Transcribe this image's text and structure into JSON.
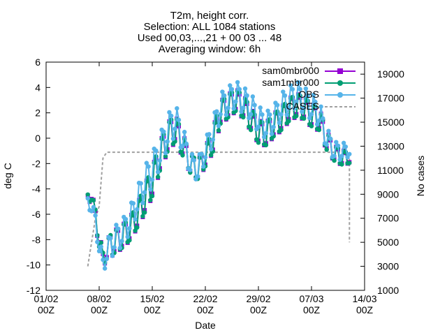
{
  "chart_data": {
    "type": "line",
    "title_lines": [
      "T2m, height corr.",
      "Selection: ALL   1084 stations",
      "Used 00,03,...,21 + 00 03 ... 48",
      "Averaging window:  6h"
    ],
    "xlabel": "Date",
    "ylabel": "deg C",
    "y2label": "No cases",
    "x_range": [
      "01/02 00Z",
      "14/03 00Z"
    ],
    "x_ticks": [
      {
        "line1": "01/02",
        "line2": "00Z"
      },
      {
        "line1": "08/02",
        "line2": "00Z"
      },
      {
        "line1": "15/02",
        "line2": "00Z"
      },
      {
        "line1": "22/02",
        "line2": "00Z"
      },
      {
        "line1": "29/02",
        "line2": "00Z"
      },
      {
        "line1": "07/03",
        "line2": "00Z"
      },
      {
        "line1": "14/03",
        "line2": "00Z"
      }
    ],
    "ylim": [
      -12,
      6
    ],
    "y_ticks": [
      "-12",
      "-10",
      "-8",
      "-6",
      "-4",
      "-2",
      "0",
      "2",
      "4",
      "6"
    ],
    "y2lim": [
      1000,
      20000
    ],
    "y2_ticks": [
      "1000",
      "3000",
      "5000",
      "7000",
      "9000",
      "11000",
      "13000",
      "15000",
      "17000",
      "19000"
    ],
    "legend_position": "top-right",
    "series": [
      {
        "name": "sam0mbr000",
        "color": "#9400d3",
        "marker": "filled-square",
        "axis": "left"
      },
      {
        "name": "sam1mbr000",
        "color": "#009e73",
        "marker": "filled-circle",
        "axis": "left"
      },
      {
        "name": "OBS",
        "color": "#56b4e9",
        "marker": "filled-circle",
        "axis": "left"
      },
      {
        "name": "CASES",
        "color": "#a0a0a0",
        "style": "dashed",
        "axis": "right"
      }
    ],
    "anchors": {
      "x": [
        5.5,
        6.0,
        6.5,
        7.0,
        7.5,
        8.0,
        8.5,
        9.0,
        10.0,
        11.0,
        12.0,
        13.0,
        14.0,
        15.0,
        16.0,
        17.0,
        18.0,
        19.0,
        20.0,
        21.0,
        22.0,
        23.0,
        24.0,
        25.0,
        26.0,
        27.0,
        28.0,
        29.0,
        30.0,
        31.0,
        32.0,
        33.0,
        34.0,
        35.0,
        36.0,
        37.0,
        38.0,
        39.0,
        40.0
      ],
      "obs": [
        -5.0,
        -5.5,
        -6.5,
        -8.5,
        -10.0,
        -9.0,
        -8.5,
        -8.0,
        -7.5,
        -6.5,
        -5.0,
        -3.5,
        -2.5,
        -1.0,
        0.5,
        1.5,
        0.0,
        -2.0,
        -2.5,
        -1.0,
        0.5,
        2.5,
        3.0,
        3.5,
        3.0,
        2.5,
        1.5,
        1.0,
        1.5,
        2.5,
        3.0,
        3.5,
        3.0,
        2.5,
        2.0,
        0.0,
        -1.0,
        -1.0,
        -1.0
      ],
      "sam1": [
        -4.8,
        -4.5,
        -6.2,
        -8.0,
        -9.6,
        -8.8,
        -8.5,
        -8.2,
        -7.8,
        -7.2,
        -6.2,
        -4.8,
        -3.5,
        -1.5,
        0.0,
        0.8,
        -0.5,
        -2.0,
        -2.5,
        -1.5,
        -0.2,
        2.0,
        2.5,
        3.0,
        2.5,
        1.5,
        0.5,
        0.3,
        1.0,
        1.5,
        2.2,
        2.6,
        2.4,
        1.8,
        1.5,
        -0.2,
        -1.2,
        -1.5,
        -1.6
      ],
      "amplitude": [
        0.5,
        0.5,
        0.8,
        0.8,
        0.8,
        1.0,
        1.2,
        1.2,
        1.2,
        1.2,
        1.2,
        1.5,
        1.5,
        1.5,
        1.5,
        1.5,
        1.2,
        1.0,
        1.0,
        1.0,
        1.2,
        1.2,
        1.2,
        1.2,
        1.2,
        1.2,
        1.2,
        1.2,
        1.2,
        1.2,
        1.2,
        1.2,
        1.2,
        1.2,
        1.2,
        1.0,
        0.8,
        0.8,
        0.5
      ],
      "cases": [
        3000,
        5000,
        7000,
        8000,
        12000,
        12500,
        12500,
        12500,
        12500,
        12500,
        12500,
        12500,
        12500,
        12500,
        12500,
        12500,
        12500,
        12500,
        12500,
        12500,
        12500,
        12500,
        12500,
        12500,
        12500,
        12500,
        12500,
        12500,
        12500,
        12500,
        12500,
        12500,
        12500,
        12500,
        12500,
        12500,
        12500,
        12500,
        12000
      ],
      "cases_end": {
        "x": 40.0,
        "value": 5000
      }
    }
  }
}
